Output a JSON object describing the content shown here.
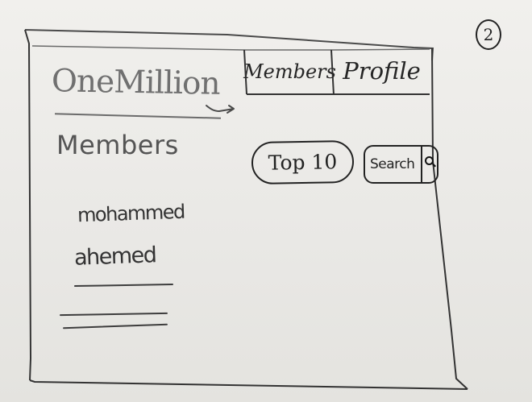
{
  "page_number": "2",
  "app": {
    "title": "OneMillion"
  },
  "nav": {
    "tabs": [
      {
        "label": "Members"
      },
      {
        "label": "Profile"
      }
    ]
  },
  "main": {
    "section_heading": "Members",
    "members": [
      {
        "name": "mohammed"
      },
      {
        "name": "ahemed"
      }
    ],
    "top10_button": "Top 10",
    "search_label": "Search"
  },
  "icons": {
    "search": "search-icon",
    "logo_mark": "arrow-icon"
  }
}
